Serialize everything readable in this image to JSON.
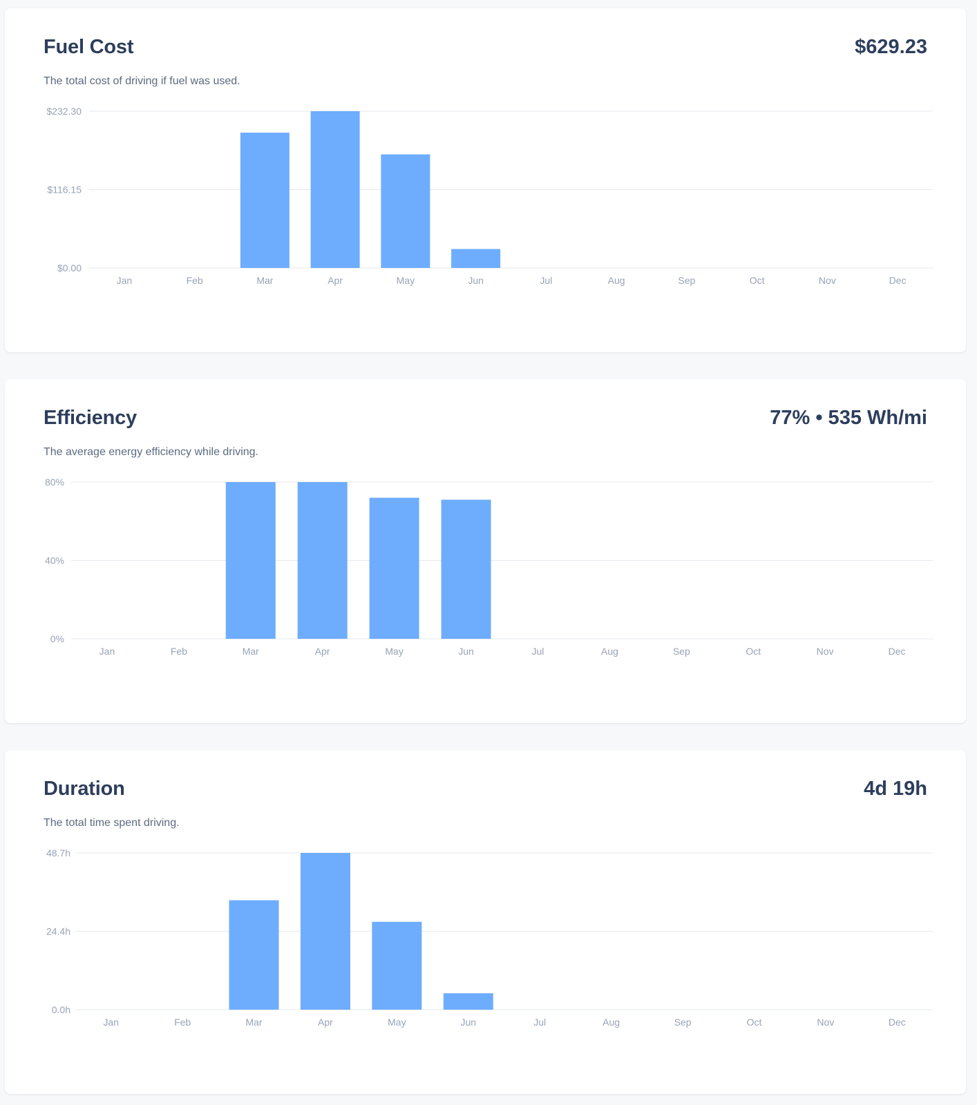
{
  "accent_color": "#6eadfd",
  "cards": [
    {
      "title": "Fuel Cost",
      "value": "$629.23",
      "description": "The total cost of driving if fuel was used.",
      "chart_data": {
        "type": "bar",
        "title": "",
        "xlabel": "",
        "ylabel": "",
        "categories": [
          "Jan",
          "Feb",
          "Mar",
          "Apr",
          "May",
          "Jun",
          "Jul",
          "Aug",
          "Sep",
          "Oct",
          "Nov",
          "Dec"
        ],
        "values": [
          0,
          0,
          200.5,
          232.3,
          168.3,
          28.1,
          0,
          0,
          0,
          0,
          0,
          0
        ],
        "ylim": [
          0,
          232.3
        ],
        "yticks": [
          "$0.00",
          "$116.15",
          "$232.30"
        ],
        "grid": true
      }
    },
    {
      "title": "Efficiency",
      "value": "77% • 535 Wh/mi",
      "description": "The average energy efficiency while driving.",
      "chart_data": {
        "type": "bar",
        "title": "",
        "xlabel": "",
        "ylabel": "",
        "categories": [
          "Jan",
          "Feb",
          "Mar",
          "Apr",
          "May",
          "Jun",
          "Jul",
          "Aug",
          "Sep",
          "Oct",
          "Nov",
          "Dec"
        ],
        "values": [
          0,
          0,
          80,
          80,
          72,
          71,
          0,
          0,
          0,
          0,
          0,
          0
        ],
        "ylim": [
          0,
          80
        ],
        "yticks": [
          "0%",
          "40%",
          "80%"
        ],
        "grid": true
      }
    },
    {
      "title": "Duration",
      "value": "4d 19h",
      "description": "The total time spent driving.",
      "chart_data": {
        "type": "bar",
        "title": "",
        "xlabel": "",
        "ylabel": "",
        "categories": [
          "Jan",
          "Feb",
          "Mar",
          "Apr",
          "May",
          "Jun",
          "Jul",
          "Aug",
          "Sep",
          "Oct",
          "Nov",
          "Dec"
        ],
        "values": [
          0,
          0,
          34.0,
          48.7,
          27.3,
          5.1,
          0,
          0,
          0,
          0,
          0,
          0
        ],
        "ylim": [
          0,
          48.7
        ],
        "yticks": [
          "0.0h",
          "24.4h",
          "48.7h"
        ],
        "grid": true
      }
    }
  ]
}
